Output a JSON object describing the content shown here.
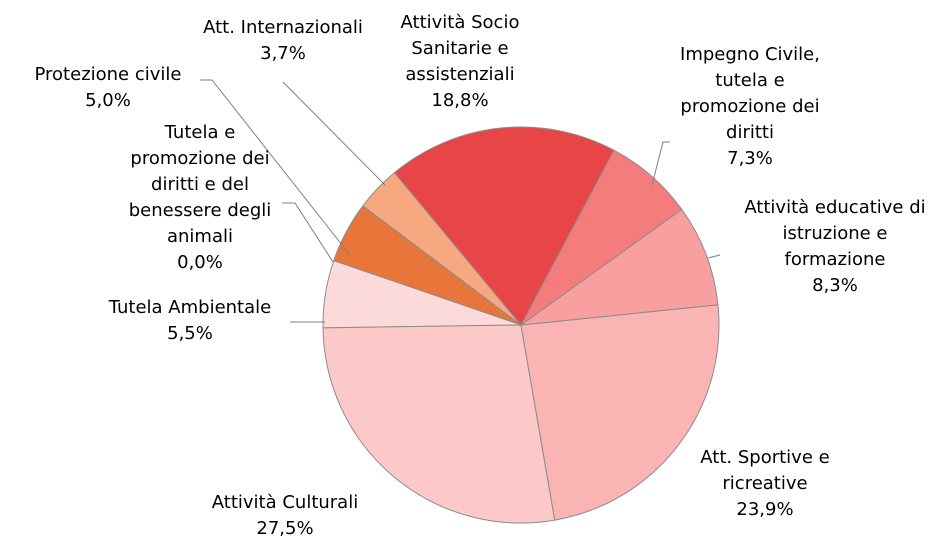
{
  "chart_data": {
    "type": "pie",
    "categories": [
      "Attività Socio Sanitarie e assistenziali",
      "Impegno Civile, tutela e promozione dei diritti",
      "Attività educative di istruzione e formazione",
      "Att. Sportive e ricreative",
      "Attività Culturali",
      "Tutela Ambientale",
      "Tutela e promozione dei diritti e del benessere degli animali",
      "Protezione civile",
      "Att. Internazionali"
    ],
    "values": [
      18.8,
      7.3,
      8.3,
      23.9,
      27.5,
      5.5,
      0.0,
      5.0,
      3.7
    ],
    "value_labels": [
      "18,8%",
      "7,3%",
      "8,3%",
      "23,9%",
      "27,5%",
      "5,5%",
      "0,0%",
      "5,0%",
      "3,7%"
    ],
    "colors": [
      "#e84646",
      "#f47c7c",
      "#f8a0a0",
      "#fbb4b4",
      "#fdc8c8",
      "#fddada",
      "#e06030",
      "#e8753a",
      "#f8a880"
    ]
  }
}
